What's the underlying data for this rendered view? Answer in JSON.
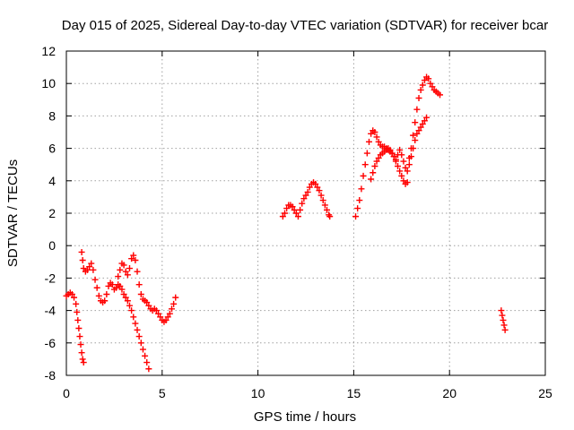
{
  "chart_data": {
    "type": "scatter",
    "title": "Day 015 of 2025, Sidereal Day-to-day VTEC variation (SDTVAR) for receiver bcar",
    "xlabel": "GPS time / hours",
    "ylabel": "SDTVAR / TECUs",
    "xlim": [
      0,
      25
    ],
    "ylim": [
      -8,
      12
    ],
    "xticks": [
      "0",
      "5",
      "10",
      "15",
      "20",
      "25"
    ],
    "yticks": [
      "-8",
      "-6",
      "-4",
      "-2",
      "0",
      "2",
      "4",
      "6",
      "8",
      "10",
      "12"
    ],
    "grid": true,
    "marker": "plus",
    "colors": {
      "series": "#ff0000"
    },
    "series": [
      {
        "points": [
          [
            0.0,
            -3.1
          ],
          [
            0.1,
            -3.0
          ],
          [
            0.2,
            -2.9
          ],
          [
            0.3,
            -3.0
          ],
          [
            0.4,
            -3.2
          ],
          [
            0.5,
            -3.6
          ],
          [
            0.55,
            -4.1
          ],
          [
            0.6,
            -4.6
          ],
          [
            0.65,
            -5.1
          ],
          [
            0.7,
            -5.6
          ],
          [
            0.75,
            -6.1
          ],
          [
            0.8,
            -6.6
          ],
          [
            0.85,
            -7.0
          ],
          [
            0.9,
            -7.2
          ],
          [
            0.8,
            -0.4
          ],
          [
            0.85,
            -0.9
          ],
          [
            0.9,
            -1.4
          ],
          [
            1.0,
            -1.6
          ],
          [
            1.1,
            -1.5
          ],
          [
            1.2,
            -1.3
          ],
          [
            1.3,
            -1.1
          ],
          [
            1.4,
            -1.5
          ],
          [
            1.5,
            -2.1
          ],
          [
            1.6,
            -2.6
          ],
          [
            1.7,
            -3.1
          ],
          [
            1.8,
            -3.4
          ],
          [
            1.9,
            -3.5
          ],
          [
            2.0,
            -3.4
          ],
          [
            2.1,
            -3.0
          ],
          [
            2.2,
            -2.5
          ],
          [
            2.3,
            -2.3
          ],
          [
            2.4,
            -2.4
          ],
          [
            2.5,
            -2.7
          ],
          [
            2.6,
            -2.6
          ],
          [
            2.7,
            -2.4
          ],
          [
            2.8,
            -2.5
          ],
          [
            2.9,
            -2.7
          ],
          [
            3.0,
            -3.0
          ],
          [
            3.1,
            -3.2
          ],
          [
            3.2,
            -3.4
          ],
          [
            3.3,
            -3.7
          ],
          [
            3.4,
            -4.0
          ],
          [
            3.5,
            -4.4
          ],
          [
            3.6,
            -4.8
          ],
          [
            3.7,
            -5.2
          ],
          [
            3.8,
            -5.6
          ],
          [
            3.9,
            -6.0
          ],
          [
            4.0,
            -6.4
          ],
          [
            4.1,
            -6.8
          ],
          [
            4.2,
            -7.2
          ],
          [
            4.3,
            -7.6
          ],
          [
            2.7,
            -1.9
          ],
          [
            2.8,
            -1.5
          ],
          [
            2.9,
            -1.1
          ],
          [
            3.0,
            -1.2
          ],
          [
            3.1,
            -1.6
          ],
          [
            3.2,
            -1.8
          ],
          [
            3.3,
            -1.4
          ],
          [
            3.4,
            -0.8
          ],
          [
            3.5,
            -0.6
          ],
          [
            3.6,
            -0.9
          ],
          [
            3.7,
            -1.6
          ],
          [
            3.8,
            -2.4
          ],
          [
            3.9,
            -3.0
          ],
          [
            4.0,
            -3.3
          ],
          [
            4.1,
            -3.4
          ],
          [
            4.2,
            -3.5
          ],
          [
            4.3,
            -3.7
          ],
          [
            4.4,
            -3.9
          ],
          [
            4.5,
            -4.0
          ],
          [
            4.6,
            -3.9
          ],
          [
            4.7,
            -4.0
          ],
          [
            4.8,
            -4.2
          ],
          [
            4.9,
            -4.4
          ],
          [
            5.0,
            -4.6
          ],
          [
            5.1,
            -4.7
          ],
          [
            5.2,
            -4.6
          ],
          [
            5.3,
            -4.4
          ],
          [
            5.4,
            -4.2
          ],
          [
            5.5,
            -3.9
          ],
          [
            5.6,
            -3.6
          ],
          [
            5.7,
            -3.2
          ],
          [
            11.3,
            1.8
          ],
          [
            11.4,
            2.0
          ],
          [
            11.5,
            2.3
          ],
          [
            11.6,
            2.5
          ],
          [
            11.7,
            2.5
          ],
          [
            11.8,
            2.4
          ],
          [
            11.9,
            2.2
          ],
          [
            12.0,
            2.0
          ],
          [
            12.1,
            1.8
          ],
          [
            12.2,
            2.2
          ],
          [
            12.3,
            2.6
          ],
          [
            12.4,
            2.9
          ],
          [
            12.5,
            3.1
          ],
          [
            12.6,
            3.3
          ],
          [
            12.7,
            3.6
          ],
          [
            12.8,
            3.8
          ],
          [
            12.9,
            3.9
          ],
          [
            13.0,
            3.8
          ],
          [
            13.1,
            3.6
          ],
          [
            13.2,
            3.4
          ],
          [
            13.3,
            3.1
          ],
          [
            13.4,
            2.8
          ],
          [
            13.5,
            2.5
          ],
          [
            13.6,
            2.2
          ],
          [
            13.7,
            1.9
          ],
          [
            13.75,
            1.8
          ],
          [
            15.1,
            1.8
          ],
          [
            15.2,
            2.3
          ],
          [
            15.3,
            2.8
          ],
          [
            15.4,
            3.5
          ],
          [
            15.5,
            4.3
          ],
          [
            15.6,
            5.0
          ],
          [
            15.7,
            5.7
          ],
          [
            15.8,
            6.4
          ],
          [
            15.9,
            6.9
          ],
          [
            16.0,
            7.1
          ],
          [
            16.1,
            7.0
          ],
          [
            16.2,
            6.7
          ],
          [
            16.3,
            6.4
          ],
          [
            16.4,
            6.2
          ],
          [
            16.5,
            6.1
          ],
          [
            16.6,
            6.1
          ],
          [
            16.7,
            6.0
          ],
          [
            16.8,
            5.9
          ],
          [
            16.9,
            5.8
          ],
          [
            17.0,
            5.7
          ],
          [
            17.1,
            5.5
          ],
          [
            17.2,
            5.2
          ],
          [
            17.3,
            4.9
          ],
          [
            17.4,
            4.6
          ],
          [
            17.5,
            4.3
          ],
          [
            17.6,
            4.0
          ],
          [
            17.7,
            3.8
          ],
          [
            17.8,
            3.9
          ],
          [
            15.9,
            4.1
          ],
          [
            16.0,
            4.5
          ],
          [
            16.1,
            4.9
          ],
          [
            16.2,
            5.2
          ],
          [
            16.3,
            5.4
          ],
          [
            16.4,
            5.6
          ],
          [
            16.5,
            5.7
          ],
          [
            16.6,
            5.8
          ],
          [
            16.7,
            5.9
          ],
          [
            16.8,
            6.0
          ],
          [
            16.9,
            5.9
          ],
          [
            17.0,
            5.7
          ],
          [
            17.1,
            5.5
          ],
          [
            17.2,
            5.3
          ],
          [
            17.3,
            5.6
          ],
          [
            17.4,
            5.9
          ],
          [
            17.5,
            5.6
          ],
          [
            17.6,
            5.2
          ],
          [
            17.7,
            4.8
          ],
          [
            17.8,
            4.6
          ],
          [
            17.9,
            5.0
          ],
          [
            18.0,
            5.5
          ],
          [
            18.1,
            6.0
          ],
          [
            18.2,
            6.5
          ],
          [
            18.3,
            6.9
          ],
          [
            18.4,
            7.1
          ],
          [
            18.5,
            7.3
          ],
          [
            18.6,
            7.5
          ],
          [
            18.7,
            7.7
          ],
          [
            18.8,
            7.9
          ],
          [
            17.9,
            5.4
          ],
          [
            18.0,
            6.0
          ],
          [
            18.1,
            6.8
          ],
          [
            18.2,
            7.6
          ],
          [
            18.3,
            8.4
          ],
          [
            18.4,
            9.1
          ],
          [
            18.5,
            9.6
          ],
          [
            18.6,
            9.9
          ],
          [
            18.7,
            10.2
          ],
          [
            18.8,
            10.4
          ],
          [
            18.9,
            10.3
          ],
          [
            19.0,
            10.0
          ],
          [
            19.1,
            9.8
          ],
          [
            19.2,
            9.6
          ],
          [
            19.3,
            9.5
          ],
          [
            19.4,
            9.4
          ],
          [
            19.5,
            9.3
          ],
          [
            22.7,
            -4.0
          ],
          [
            22.75,
            -4.3
          ],
          [
            22.8,
            -4.6
          ],
          [
            22.85,
            -4.9
          ],
          [
            22.9,
            -5.2
          ]
        ]
      }
    ]
  }
}
